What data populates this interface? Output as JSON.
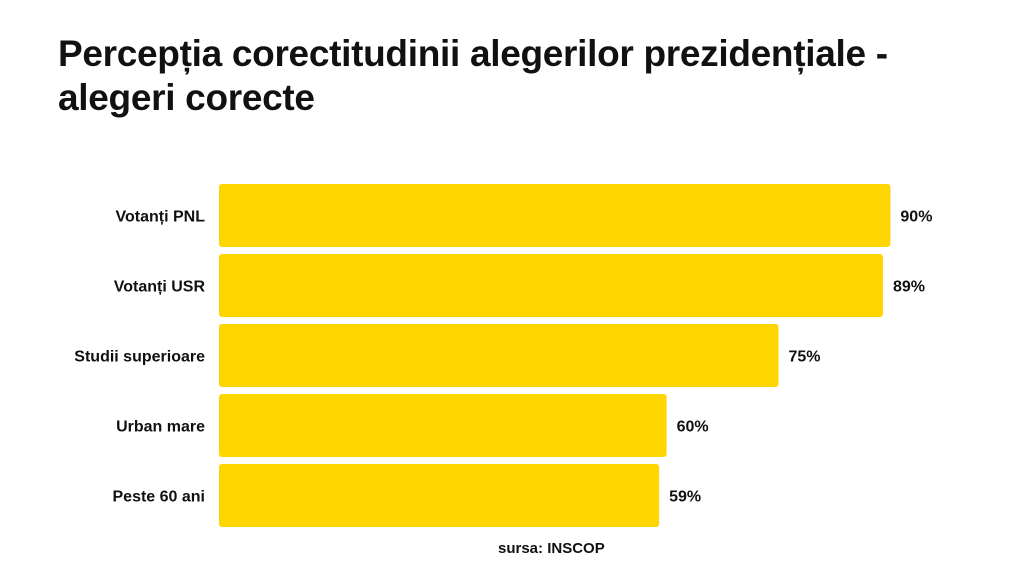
{
  "chart_data": {
    "type": "bar",
    "orientation": "horizontal",
    "title_lines": [
      "Percepția corectitudinii alegerilor prezidențiale -",
      "alegeri corecte"
    ],
    "categories": [
      "Votanți PNL",
      "Votanți USR",
      "Studii superioare",
      "Urban mare",
      "Peste 60 ani"
    ],
    "values": [
      90,
      89,
      75,
      60,
      59
    ],
    "value_labels": [
      "90%",
      "89%",
      "75%",
      "60%",
      "59%"
    ],
    "unit": "%",
    "xlim": [
      0,
      100
    ],
    "grid": false,
    "legend": "none",
    "bar_color": "#FFD500",
    "source": "sursa: INSCOP"
  }
}
